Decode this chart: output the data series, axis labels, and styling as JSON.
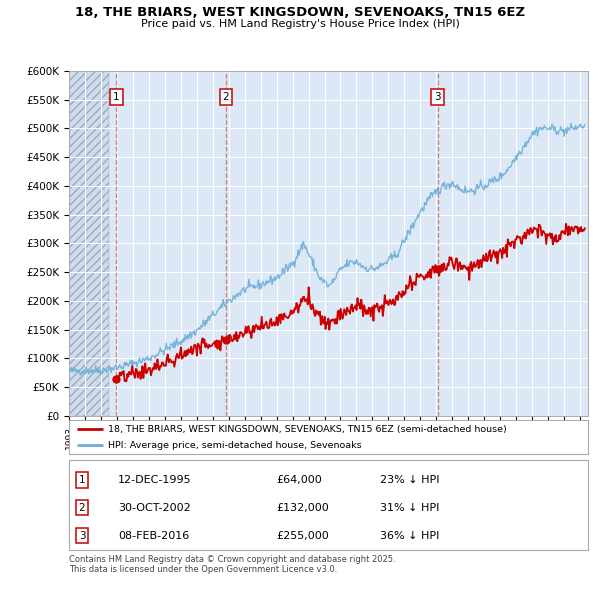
{
  "title_line1": "18, THE BRIARS, WEST KINGSDOWN, SEVENOAKS, TN15 6EZ",
  "title_line2": "Price paid vs. HM Land Registry's House Price Index (HPI)",
  "hpi_color": "#6baed6",
  "price_color": "#cc0000",
  "ylim": [
    0,
    600000
  ],
  "yticks": [
    0,
    50000,
    100000,
    150000,
    200000,
    250000,
    300000,
    350000,
    400000,
    450000,
    500000,
    550000,
    600000
  ],
  "ytick_labels": [
    "£0",
    "£50K",
    "£100K",
    "£150K",
    "£200K",
    "£250K",
    "£300K",
    "£350K",
    "£400K",
    "£450K",
    "£500K",
    "£550K",
    "£600K"
  ],
  "xlim_start": 1993.0,
  "xlim_end": 2025.5,
  "hatch_end": 1995.5,
  "sales": [
    {
      "year": 1995.95,
      "price": 64000,
      "label": "1"
    },
    {
      "year": 2002.83,
      "price": 132000,
      "label": "2"
    },
    {
      "year": 2016.1,
      "price": 255000,
      "label": "3"
    }
  ],
  "vlines": [
    1995.95,
    2002.83,
    2016.1
  ],
  "legend_entries": [
    "18, THE BRIARS, WEST KINGSDOWN, SEVENOAKS, TN15 6EZ (semi-detached house)",
    "HPI: Average price, semi-detached house, Sevenoaks"
  ],
  "table_entries": [
    {
      "num": "1",
      "date": "12-DEC-1995",
      "price": "£64,000",
      "hpi": "23% ↓ HPI"
    },
    {
      "num": "2",
      "date": "30-OCT-2002",
      "price": "£132,000",
      "hpi": "31% ↓ HPI"
    },
    {
      "num": "3",
      "date": "08-FEB-2016",
      "price": "£255,000",
      "hpi": "36% ↓ HPI"
    }
  ],
  "footer": "Contains HM Land Registry data © Crown copyright and database right 2025.\nThis data is licensed under the Open Government Licence v3.0."
}
